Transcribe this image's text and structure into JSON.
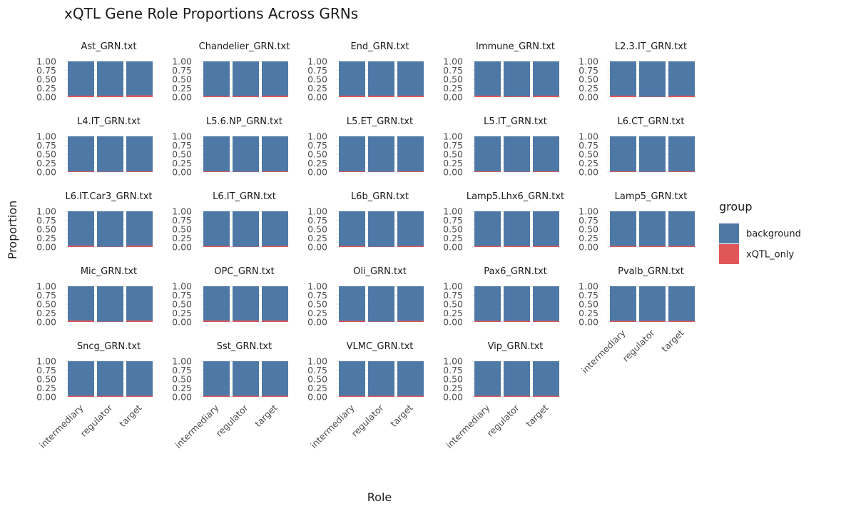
{
  "chart_data": {
    "type": "bar",
    "stacked": true,
    "title": "xQTL Gene Role Proportions Across GRNs",
    "xlabel": "Role",
    "ylabel": "Proportion",
    "categories": [
      "intermediary",
      "regulator",
      "target"
    ],
    "y_ticks": [
      "0.00",
      "0.25",
      "0.50",
      "0.75",
      "1.00"
    ],
    "ylim": [
      0,
      1
    ],
    "grid": true,
    "legend": {
      "title": "group",
      "position": "right",
      "entries": [
        {
          "name": "background",
          "color": "#4E79A7"
        },
        {
          "name": "xQTL_only",
          "color": "#E15759"
        }
      ]
    },
    "panels": [
      {
        "name": "Ast_GRN.txt",
        "xqtl_only": [
          0.04,
          0.04,
          0.05
        ]
      },
      {
        "name": "Chandelier_GRN.txt",
        "xqtl_only": [
          0.03,
          0.03,
          0.04
        ]
      },
      {
        "name": "End_GRN.txt",
        "xqtl_only": [
          0.04,
          0.04,
          0.04
        ]
      },
      {
        "name": "Immune_GRN.txt",
        "xqtl_only": [
          0.04,
          0.02,
          0.04
        ]
      },
      {
        "name": "L2.3.IT_GRN.txt",
        "xqtl_only": [
          0.04,
          0.01,
          0.04
        ]
      },
      {
        "name": "L4.IT_GRN.txt",
        "xqtl_only": [
          0.02,
          0.01,
          0.02
        ]
      },
      {
        "name": "L5.6.NP_GRN.txt",
        "xqtl_only": [
          0.02,
          0.01,
          0.02
        ]
      },
      {
        "name": "L5.ET_GRN.txt",
        "xqtl_only": [
          0.02,
          0.01,
          0.02
        ]
      },
      {
        "name": "L5.IT_GRN.txt",
        "xqtl_only": [
          0.02,
          0.01,
          0.02
        ]
      },
      {
        "name": "L6.CT_GRN.txt",
        "xqtl_only": [
          0.02,
          0.01,
          0.02
        ]
      },
      {
        "name": "L6.IT.Car3_GRN.txt",
        "xqtl_only": [
          0.04,
          0.01,
          0.04
        ]
      },
      {
        "name": "L6.IT_GRN.txt",
        "xqtl_only": [
          0.03,
          0.01,
          0.03
        ]
      },
      {
        "name": "L6b_GRN.txt",
        "xqtl_only": [
          0.03,
          0.01,
          0.03
        ]
      },
      {
        "name": "Lamp5.Lhx6_GRN.txt",
        "xqtl_only": [
          0.03,
          0.03,
          0.03
        ]
      },
      {
        "name": "Lamp5_GRN.txt",
        "xqtl_only": [
          0.03,
          0.03,
          0.03
        ]
      },
      {
        "name": "Mic_GRN.txt",
        "xqtl_only": [
          0.04,
          0.01,
          0.04
        ]
      },
      {
        "name": "OPC_GRN.txt",
        "xqtl_only": [
          0.04,
          0.04,
          0.04
        ]
      },
      {
        "name": "Oli_GRN.txt",
        "xqtl_only": [
          0.03,
          0.01,
          0.03
        ]
      },
      {
        "name": "Pax6_GRN.txt",
        "xqtl_only": [
          0.03,
          0.03,
          0.03
        ]
      },
      {
        "name": "Pvalb_GRN.txt",
        "xqtl_only": [
          0.03,
          0.03,
          0.03
        ]
      },
      {
        "name": "Sncg_GRN.txt",
        "xqtl_only": [
          0.03,
          0.03,
          0.03
        ]
      },
      {
        "name": "Sst_GRN.txt",
        "xqtl_only": [
          0.03,
          0.03,
          0.03
        ]
      },
      {
        "name": "VLMC_GRN.txt",
        "xqtl_only": [
          0.03,
          0.03,
          0.03
        ]
      },
      {
        "name": "Vip_GRN.txt",
        "xqtl_only": [
          0.03,
          0.03,
          0.03
        ]
      }
    ]
  }
}
